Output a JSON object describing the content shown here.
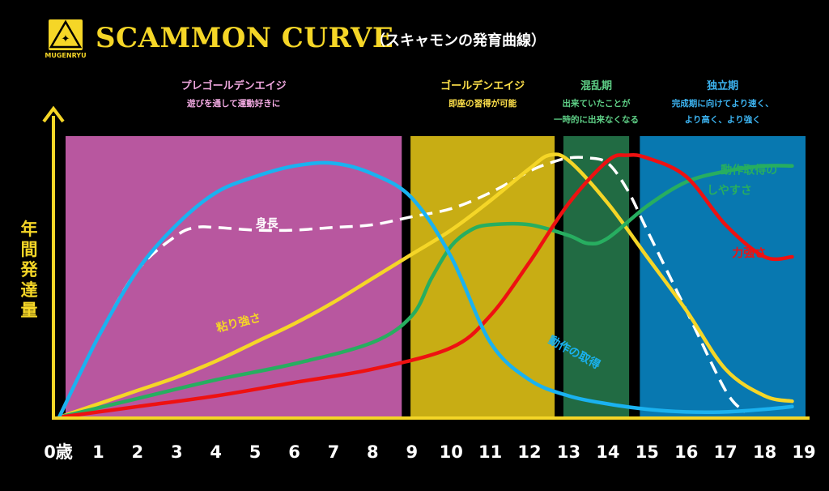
{
  "header": {
    "logo_text": "MUGENRYU",
    "title": "SCAMMON CURVE",
    "subtitle": "（スキャモンの発育曲線）"
  },
  "colors": {
    "background": "#000000",
    "accent_yellow": "#f5d627",
    "phase_pre_golden": "#b8579f",
    "phase_golden": "#c8ad14",
    "phase_chaos": "#216b43",
    "phase_independence": "#0878b0",
    "label_pre_golden": "#f0a8e0",
    "label_golden": "#ffe14a",
    "label_chaos": "#5ecf86",
    "label_independence": "#3cb3f0"
  },
  "chart_data": {
    "type": "line",
    "ylabel": "年間発達量",
    "x_ticks": [
      "0歳",
      "1",
      "2",
      "3",
      "4",
      "5",
      "6",
      "7",
      "8",
      "9",
      "10",
      "11",
      "12",
      "13",
      "14",
      "15",
      "16",
      "17",
      "18",
      "19"
    ],
    "xlim": [
      0,
      19
    ],
    "ylim": [
      0,
      100
    ],
    "phases": [
      {
        "name": "プレゴールデンエイジ",
        "desc": [
          "遊びを通して運動好きに"
        ],
        "start": 0,
        "end": 8.7,
        "color": "#b8579f",
        "label_color": "#f0a8e0"
      },
      {
        "name": "ゴールデンエイジ",
        "desc": [
          "即座の習得が可能"
        ],
        "start": 8.8,
        "end": 12.6,
        "color": "#c8ad14",
        "label_color": "#ffe14a"
      },
      {
        "name": "混乱期",
        "desc": [
          "出来ていたことが",
          "一時的に出来なくなる"
        ],
        "start": 12.7,
        "end": 14.5,
        "color": "#216b43",
        "label_color": "#5ecf86"
      },
      {
        "name": "独立期",
        "desc": [
          "完成期に向けてより速く、",
          "より高く、より強く"
        ],
        "start": 14.65,
        "end": 19,
        "color": "#0878b0",
        "label_color": "#3cb3f0"
      }
    ],
    "series": [
      {
        "name": "身長",
        "color": "#ffffff",
        "dash": true,
        "x": [
          0,
          1,
          2,
          3,
          3.5,
          4,
          5,
          6,
          7,
          8,
          9,
          10,
          11,
          12,
          12.5,
          13,
          13.5,
          14,
          14.5,
          15,
          16,
          17,
          17.5
        ],
        "y": [
          0,
          30,
          55,
          68,
          71,
          71,
          70,
          70,
          71,
          72,
          75,
          78,
          84,
          92,
          95,
          97,
          97,
          95,
          85,
          70,
          40,
          10,
          2
        ]
      },
      {
        "name": "粘り強さ",
        "color": "#f5d627",
        "dash": false,
        "x": [
          0,
          1,
          2,
          3,
          4,
          5,
          6,
          7,
          8,
          9,
          10,
          11,
          12,
          12.5,
          13,
          14,
          15,
          16,
          17,
          18,
          18.7
        ],
        "y": [
          0,
          5,
          10,
          15,
          21,
          28,
          35,
          43,
          52,
          61,
          70,
          81,
          93,
          98,
          96,
          80,
          60,
          40,
          18,
          8,
          6
        ]
      },
      {
        "name": "動作取得のしやすさ",
        "color": "#27ae60",
        "dash": false,
        "x": [
          0,
          2,
          4,
          6,
          8,
          9,
          9.5,
          10,
          10.5,
          11,
          12,
          13,
          13.5,
          14,
          15,
          16,
          17,
          18,
          18.7
        ],
        "y": [
          0,
          7,
          14,
          20,
          28,
          38,
          52,
          64,
          70,
          72,
          72,
          68,
          65,
          67,
          79,
          88,
          92,
          94,
          94
        ]
      },
      {
        "name": "力強さ",
        "color": "#ee1111",
        "dash": false,
        "x": [
          0,
          2,
          4,
          6,
          8,
          10,
          11,
          12,
          13,
          14,
          14.5,
          15,
          16,
          17,
          18,
          18.7
        ],
        "y": [
          0,
          4,
          8,
          13,
          18,
          26,
          38,
          58,
          80,
          96,
          98,
          97,
          90,
          72,
          60,
          60
        ]
      },
      {
        "name": "動作の取得",
        "color": "#1ab2f0",
        "dash": false,
        "x": [
          0,
          1,
          2,
          3,
          4,
          5,
          6,
          7,
          8,
          9,
          10,
          11,
          12,
          13,
          14,
          15,
          16,
          17,
          18,
          18.7
        ],
        "y": [
          0,
          30,
          55,
          72,
          84,
          90,
          94,
          95,
          91,
          82,
          60,
          28,
          14,
          8,
          5,
          3,
          2,
          2,
          3,
          4
        ]
      }
    ],
    "series_labels": [
      {
        "text": "身長",
        "x": 5.3,
        "y": 71,
        "color": "#ffffff",
        "rotate": 0
      },
      {
        "text": "粘り強さ",
        "x": 4.6,
        "y": 34,
        "color": "#f5d627",
        "rotate": -14
      },
      {
        "text": "動作の取得",
        "x": 13.1,
        "y": 23,
        "color": "#1ab2f0",
        "rotate": 28
      },
      {
        "text": "動作取得の",
        "x": 17.6,
        "y": 91,
        "color": "#27ae60",
        "rotate": 0
      },
      {
        "text": "しやすさ",
        "x": 17.1,
        "y": 83.5,
        "color": "#27ae60",
        "rotate": 0
      },
      {
        "text": "力強さ",
        "x": 17.6,
        "y": 60,
        "color": "#ee1111",
        "rotate": 0
      }
    ]
  }
}
